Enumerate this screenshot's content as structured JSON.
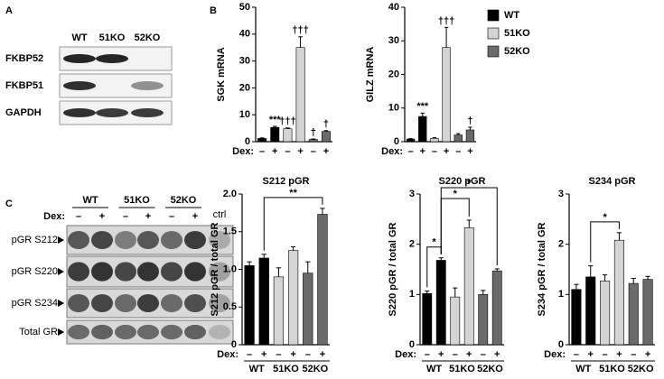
{
  "panel_a": {
    "letter": "A",
    "lanes": [
      "WT",
      "51KO",
      "52KO"
    ],
    "rows": [
      "FKBP52",
      "FKBP51",
      "GAPDH"
    ]
  },
  "panel_b": {
    "letter": "B",
    "legend": [
      {
        "name": "WT",
        "color": "#000000"
      },
      {
        "name": "51KO",
        "color": "#d4d4d4"
      },
      {
        "name": "52KO",
        "color": "#6a6a6a"
      }
    ]
  },
  "panel_c": {
    "letter": "C",
    "groups": [
      "WT",
      "51KO",
      "52KO"
    ],
    "dex_label": "Dex:",
    "dex": [
      "–",
      "+",
      "–",
      "+",
      "–",
      "+"
    ],
    "ctrl": "ctrl",
    "rows": [
      "pGR S212",
      "pGR S220",
      "pGR S234",
      "Total GR"
    ]
  },
  "chart_data": [
    {
      "type": "bar",
      "y_label": "SGK mRNA",
      "x_label": "Dex:",
      "categories": [
        "–",
        "+",
        "–",
        "+",
        "–",
        "+"
      ],
      "values": [
        1.2,
        5.3,
        4.8,
        35,
        0.8,
        3.8
      ],
      "errors": [
        0.2,
        0.4,
        0.3,
        4,
        0.2,
        0.3
      ],
      "colors": [
        "#000000",
        "#000000",
        "#d4d4d4",
        "#d4d4d4",
        "#6a6a6a",
        "#6a6a6a"
      ],
      "annotations": [
        null,
        "***",
        "†††",
        "†††",
        "†",
        "†"
      ],
      "ylim": [
        0,
        50
      ],
      "yticks": [
        0,
        10,
        20,
        30,
        40,
        50
      ]
    },
    {
      "type": "bar",
      "y_label": "GILZ mRNA",
      "x_label": "Dex:",
      "categories": [
        "–",
        "+",
        "–",
        "+",
        "–",
        "+"
      ],
      "values": [
        0.8,
        7.5,
        1.0,
        28,
        2.0,
        3.5
      ],
      "errors": [
        0.1,
        1,
        0.2,
        6,
        0.4,
        0.8
      ],
      "colors": [
        "#000000",
        "#000000",
        "#d4d4d4",
        "#d4d4d4",
        "#6a6a6a",
        "#6a6a6a"
      ],
      "annotations": [
        null,
        "***",
        null,
        "†††",
        null,
        "†"
      ],
      "ylim": [
        0,
        40
      ],
      "yticks": [
        0,
        10,
        20,
        30,
        40
      ]
    },
    {
      "type": "bar",
      "title": "S212 pGR",
      "y_label": "S212 pGR / total GR",
      "x_label": "Dex:",
      "categories": [
        "–",
        "+",
        "–",
        "+",
        "–",
        "+"
      ],
      "groups": [
        "WT",
        "51KO",
        "52KO"
      ],
      "values": [
        1.05,
        1.15,
        0.9,
        1.25,
        0.95,
        1.73
      ],
      "errors": [
        0.05,
        0.05,
        0.12,
        0.05,
        0.15,
        0.08
      ],
      "colors": [
        "#000000",
        "#000000",
        "#d4d4d4",
        "#d4d4d4",
        "#6a6a6a",
        "#6a6a6a"
      ],
      "brackets": [
        {
          "bars": [
            1,
            5
          ],
          "label": "**"
        }
      ],
      "ylim": [
        0,
        2
      ],
      "yticks": [
        0,
        0.5,
        {
          "value": 1,
          "label": "1.0"
        },
        1.5,
        {
          "value": 2,
          "label": "2.0"
        }
      ]
    },
    {
      "type": "bar",
      "title": "S220 pGR",
      "y_label": "S220 pGR / total GR",
      "x_label": "Dex:",
      "categories": [
        "–",
        "+",
        "–",
        "+",
        "–",
        "+"
      ],
      "groups": [
        "WT",
        "51KO",
        "52KO"
      ],
      "values": [
        1.02,
        1.68,
        0.95,
        2.33,
        1.0,
        1.47
      ],
      "errors": [
        0.05,
        0.05,
        0.18,
        0.15,
        0.08,
        0.04
      ],
      "colors": [
        "#000000",
        "#000000",
        "#d4d4d4",
        "#d4d4d4",
        "#6a6a6a",
        "#6a6a6a"
      ],
      "brackets": [
        {
          "bars": [
            0,
            1
          ],
          "label": "*"
        },
        {
          "bars": [
            1,
            3
          ],
          "label": "*"
        },
        {
          "bars": [
            1,
            5
          ],
          "label": "*"
        }
      ],
      "ylim": [
        0,
        3
      ],
      "yticks": [
        0,
        1,
        2,
        3
      ]
    },
    {
      "type": "bar",
      "title": "S234 pGR",
      "y_label": "S234 pGR / total GR",
      "x_label": "Dex:",
      "categories": [
        "–",
        "+",
        "–",
        "+",
        "–",
        "+"
      ],
      "groups": [
        "WT",
        "51KO",
        "52KO"
      ],
      "values": [
        1.1,
        1.35,
        1.27,
        2.08,
        1.22,
        1.3
      ],
      "errors": [
        0.1,
        0.22,
        0.12,
        0.15,
        0.1,
        0.06
      ],
      "colors": [
        "#000000",
        "#000000",
        "#d4d4d4",
        "#d4d4d4",
        "#6a6a6a",
        "#6a6a6a"
      ],
      "brackets": [
        {
          "bars": [
            1,
            3
          ],
          "label": "*"
        }
      ],
      "ylim": [
        0,
        3
      ],
      "yticks": [
        0,
        1,
        2,
        3
      ]
    }
  ]
}
